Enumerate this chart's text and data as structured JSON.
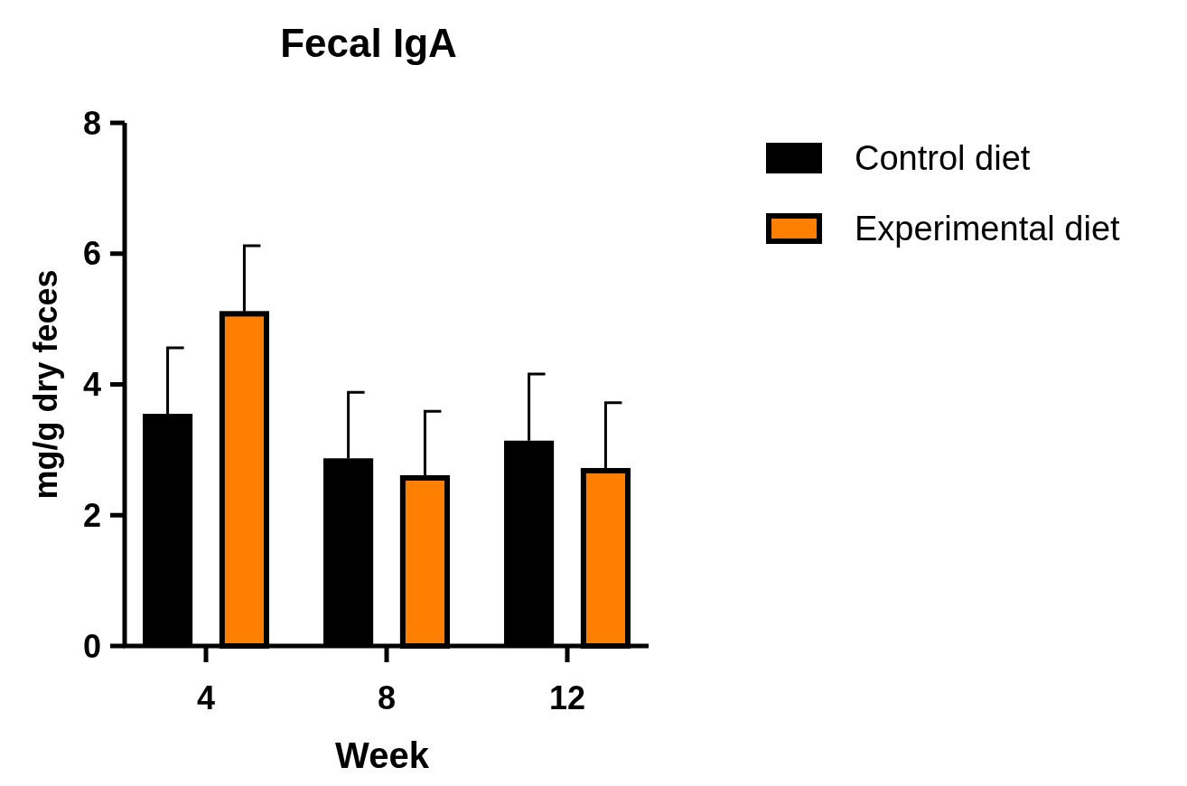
{
  "chart_data": {
    "type": "bar",
    "title": "Fecal IgA",
    "xlabel": "Week",
    "ylabel": "mg/g dry feces",
    "categories": [
      "4",
      "8",
      "12"
    ],
    "series": [
      {
        "name": "Control diet",
        "color": "#000000",
        "values": [
          3.55,
          2.87,
          3.14
        ],
        "errors": [
          [
            3.55,
            4.56
          ],
          [
            2.87,
            3.88
          ],
          [
            3.14,
            4.16
          ]
        ]
      },
      {
        "name": "Experimental diet",
        "color": "#ff8000",
        "values": [
          5.08,
          2.57,
          2.68
        ],
        "errors": [
          [
            5.08,
            6.12
          ],
          [
            2.57,
            3.59
          ],
          [
            2.68,
            3.72
          ]
        ]
      }
    ],
    "ylim": [
      0,
      8
    ],
    "yticks": [
      0,
      2,
      4,
      6,
      8
    ],
    "grid": false,
    "legend": "top right"
  }
}
